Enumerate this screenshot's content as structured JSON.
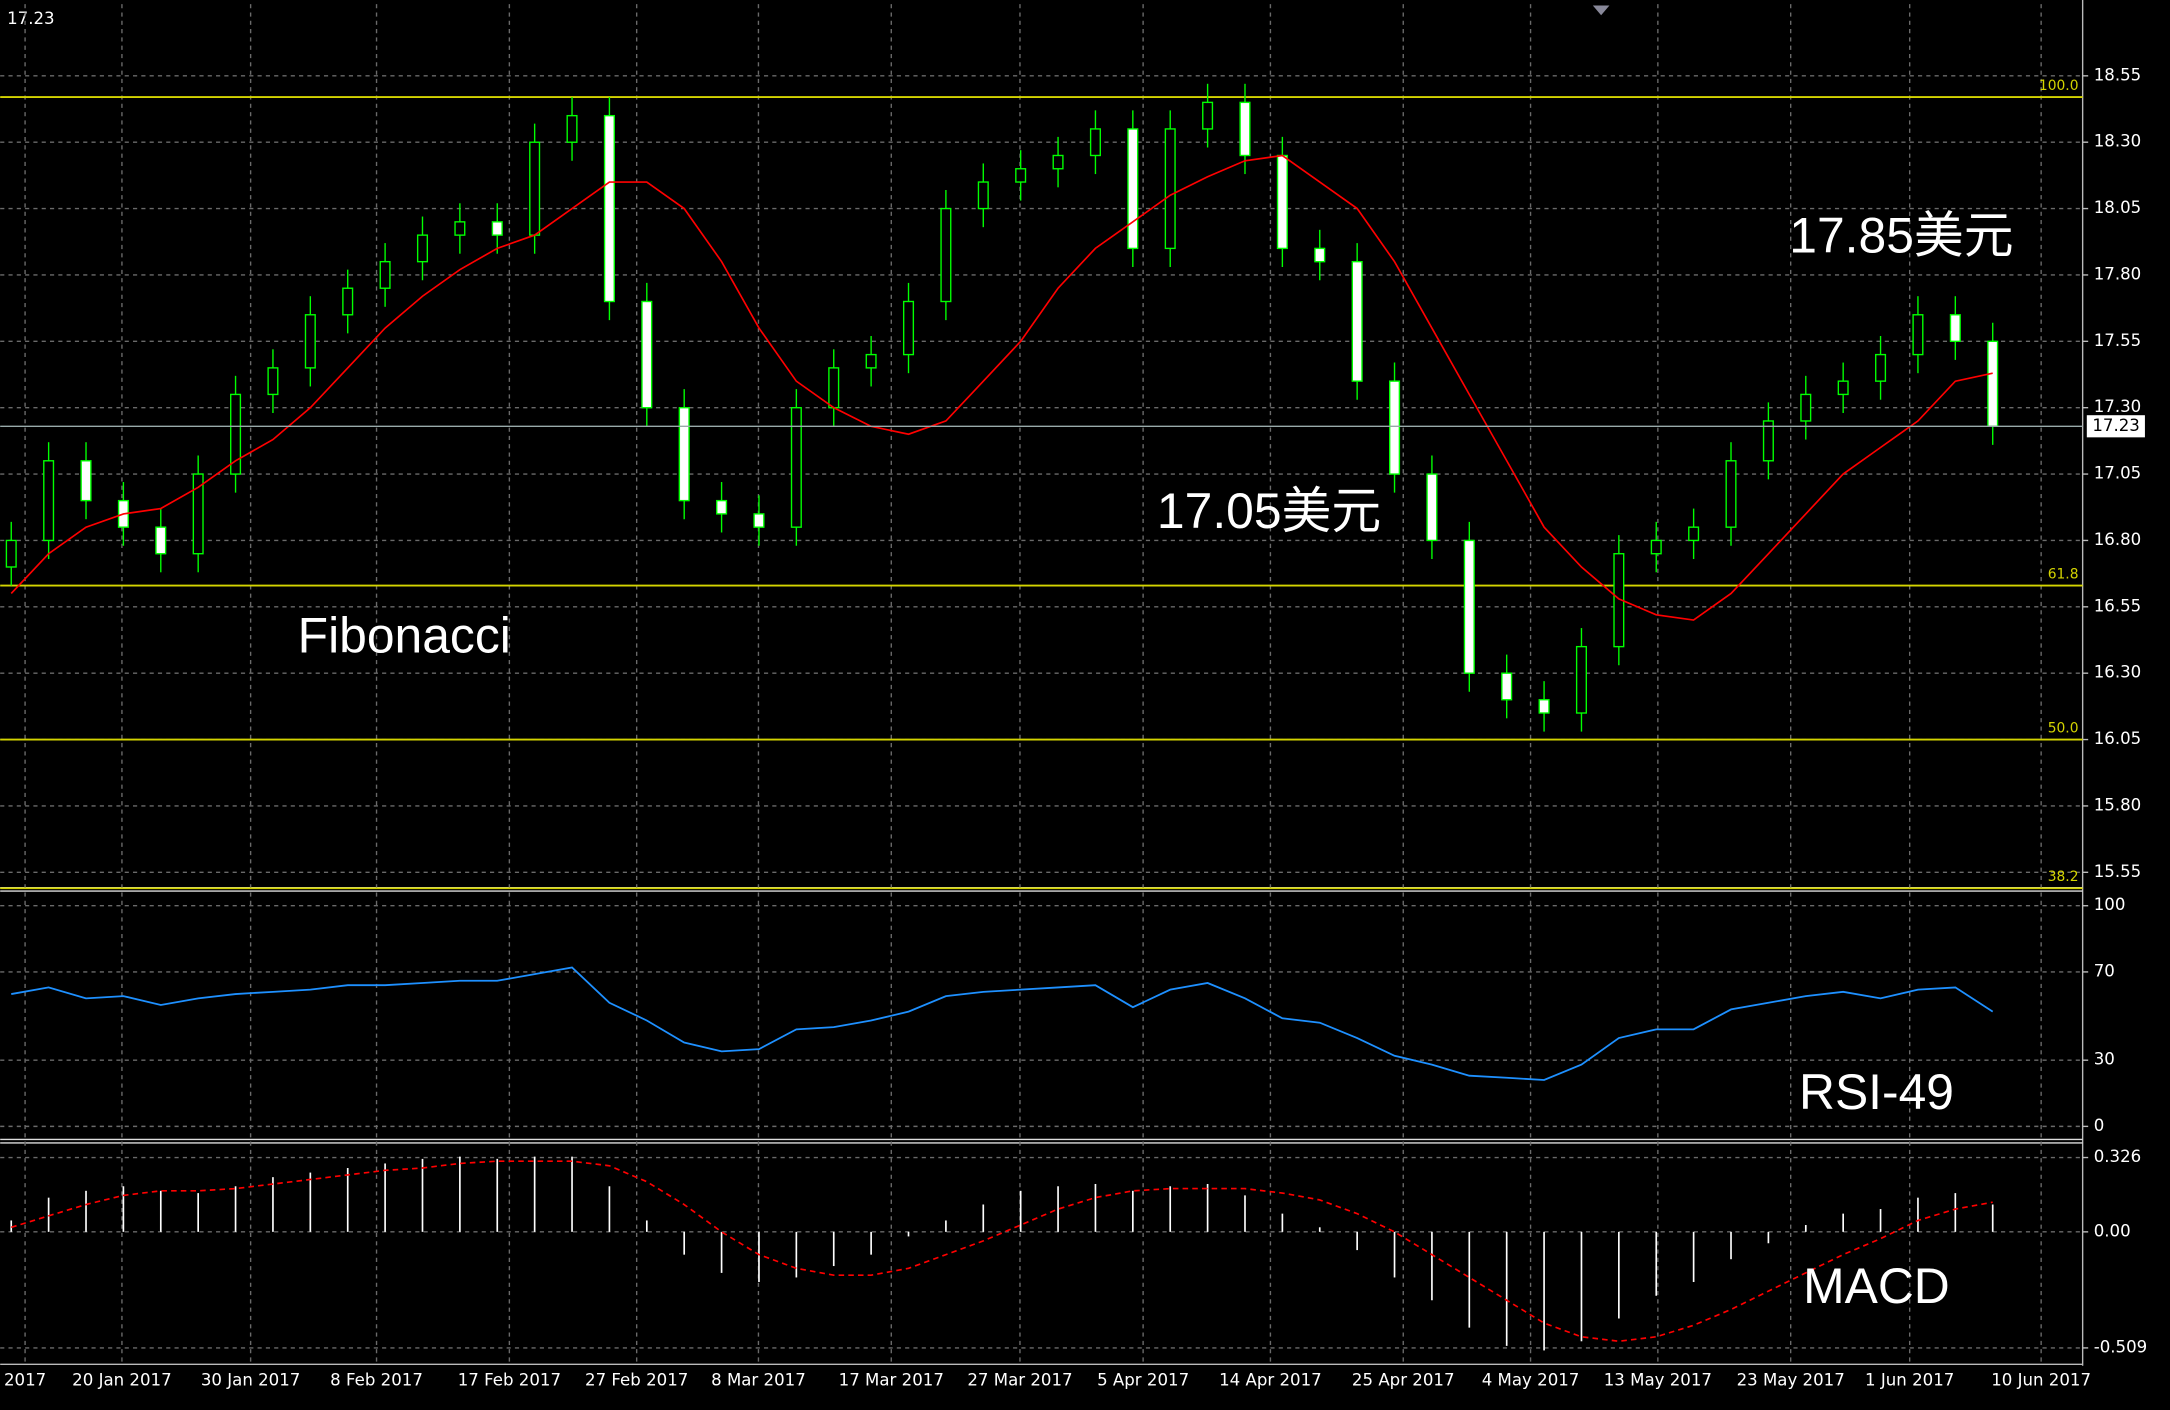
{
  "chart_data": [
    {
      "type": "candlestick",
      "last_price": 17.23,
      "ylim": [
        15.5,
        18.82
      ],
      "yticks": [
        18.55,
        {
          "value": 18.3,
          "label": "18.30"
        },
        18.05,
        {
          "value": 17.8,
          "label": "17.80"
        },
        17.55,
        {
          "value": 17.3,
          "label": "17.30"
        },
        17.05,
        {
          "value": 16.8,
          "label": "16.80"
        },
        16.55,
        {
          "value": 16.3,
          "label": "16.30"
        },
        16.05,
        {
          "value": 15.8,
          "label": "15.80"
        },
        15.55
      ],
      "grid": true,
      "color": "#00ff00",
      "open": [
        16.7,
        16.8,
        17.1,
        16.95,
        16.85,
        16.75,
        17.05,
        17.35,
        17.45,
        17.65,
        17.75,
        17.85,
        17.95,
        18.0,
        17.95,
        18.3,
        18.4,
        17.7,
        17.3,
        16.95,
        16.9,
        16.85,
        17.3,
        17.45,
        17.5,
        17.7,
        18.05,
        18.15,
        18.2,
        18.25,
        18.35,
        17.9,
        18.35,
        18.45,
        18.25,
        17.9,
        17.85,
        17.4,
        17.05,
        16.8,
        16.3,
        16.2,
        16.15,
        16.4,
        16.75,
        16.8,
        16.85,
        17.1,
        17.25,
        17.35,
        17.4,
        17.5,
        17.65,
        17.55
      ],
      "high": [
        16.87,
        17.17,
        17.17,
        17.02,
        16.92,
        17.12,
        17.42,
        17.52,
        17.72,
        17.82,
        17.92,
        18.02,
        18.07,
        18.07,
        18.37,
        18.47,
        18.47,
        17.77,
        17.37,
        17.02,
        16.97,
        17.37,
        17.52,
        17.57,
        17.77,
        18.12,
        18.22,
        18.27,
        18.32,
        18.42,
        18.42,
        18.42,
        18.52,
        18.52,
        18.32,
        17.97,
        17.92,
        17.47,
        17.12,
        16.87,
        16.37,
        16.27,
        16.47,
        16.82,
        16.87,
        16.92,
        17.17,
        17.32,
        17.42,
        17.47,
        17.57,
        17.72,
        17.72,
        17.62
      ],
      "low": [
        16.63,
        16.73,
        16.88,
        16.78,
        16.68,
        16.68,
        16.98,
        17.28,
        17.38,
        17.58,
        17.68,
        17.78,
        17.88,
        17.88,
        17.88,
        18.23,
        17.63,
        17.23,
        16.88,
        16.83,
        16.78,
        16.78,
        17.23,
        17.38,
        17.43,
        17.63,
        17.98,
        18.08,
        18.13,
        18.18,
        17.83,
        17.83,
        18.28,
        18.18,
        17.83,
        17.78,
        17.33,
        16.98,
        16.73,
        16.23,
        16.13,
        16.08,
        16.08,
        16.33,
        16.68,
        16.73,
        16.78,
        17.03,
        17.18,
        17.28,
        17.33,
        17.43,
        17.48,
        17.16
      ],
      "close": [
        16.8,
        17.1,
        16.95,
        16.85,
        16.75,
        17.05,
        17.35,
        17.45,
        17.65,
        17.75,
        17.85,
        17.95,
        18.0,
        17.95,
        18.3,
        18.4,
        17.7,
        17.3,
        16.95,
        16.9,
        16.85,
        17.3,
        17.45,
        17.5,
        17.7,
        18.05,
        18.15,
        18.2,
        18.25,
        18.35,
        17.9,
        18.35,
        18.45,
        18.25,
        17.9,
        17.85,
        17.4,
        17.05,
        16.8,
        16.3,
        16.2,
        16.15,
        16.4,
        16.75,
        16.8,
        16.85,
        17.1,
        17.25,
        17.35,
        17.4,
        17.5,
        17.65,
        17.55,
        17.23
      ],
      "series": [
        {
          "color": "#ff0000",
          "values": [
            16.6,
            16.75,
            16.85,
            16.9,
            16.92,
            17.0,
            17.1,
            17.18,
            17.3,
            17.45,
            17.6,
            17.72,
            17.82,
            17.9,
            17.95,
            18.05,
            18.15,
            18.15,
            18.05,
            17.85,
            17.6,
            17.4,
            17.3,
            17.23,
            17.2,
            17.25,
            17.4,
            17.55,
            17.75,
            17.9,
            18.0,
            18.1,
            18.17,
            18.23,
            18.25,
            18.15,
            18.05,
            17.85,
            17.6,
            17.35,
            17.1,
            16.85,
            16.7,
            16.58,
            16.52,
            16.5,
            16.6,
            16.75,
            16.9,
            17.05,
            17.15,
            17.25,
            17.4,
            17.43
          ]
        }
      ],
      "level_color": "#d4d400",
      "levels": [
        {
          "value": 18.47,
          "label": "100.0"
        },
        {
          "value": 16.63,
          "label": "61.8"
        },
        {
          "value": 16.05,
          "label": "50.0"
        },
        {
          "value": 15.49,
          "label": "38.2"
        }
      ],
      "annotations": [
        "17.85美元",
        "17.05美元",
        "Fibonacci"
      ]
    },
    {
      "type": "line",
      "ylim": [
        -5,
        106
      ],
      "yticks": [
        100,
        70,
        30,
        0
      ],
      "grid": true,
      "series": [
        {
          "color": "#1e90ff",
          "values": [
            60,
            63,
            58,
            59,
            55,
            58,
            60,
            61,
            62,
            64,
            64,
            65,
            66,
            66,
            69,
            72,
            56,
            48,
            38,
            34,
            35,
            44,
            45,
            48,
            52,
            59,
            61,
            62,
            63,
            64,
            54,
            62,
            65,
            58,
            49,
            47,
            40,
            32,
            28,
            23,
            22,
            21,
            28,
            40,
            44,
            44,
            53,
            56,
            59,
            61,
            58,
            62,
            63,
            52
          ]
        }
      ],
      "annotations": [
        "RSI-49"
      ]
    },
    {
      "type": "macd",
      "ylim": [
        -0.575,
        0.39
      ],
      "yticks": [
        0.326,
        {
          "value": 0,
          "label": "0.00"
        },
        -0.509
      ],
      "grid": true,
      "histogram": {
        "color": "#ffffff",
        "values": [
          0.05,
          0.15,
          0.18,
          0.2,
          0.18,
          0.17,
          0.2,
          0.24,
          0.26,
          0.28,
          0.3,
          0.32,
          0.33,
          0.32,
          0.33,
          0.33,
          0.2,
          0.05,
          -0.1,
          -0.18,
          -0.22,
          -0.2,
          -0.15,
          -0.1,
          -0.02,
          0.05,
          0.12,
          0.18,
          0.2,
          0.21,
          0.18,
          0.2,
          0.21,
          0.16,
          0.08,
          0.02,
          -0.08,
          -0.2,
          -0.3,
          -0.42,
          -0.5,
          -0.52,
          -0.48,
          -0.38,
          -0.28,
          -0.22,
          -0.12,
          -0.05,
          0.03,
          0.08,
          0.1,
          0.15,
          0.17,
          0.12
        ]
      },
      "signal": {
        "color": "#ff0000",
        "values": [
          0.02,
          0.07,
          0.12,
          0.16,
          0.18,
          0.18,
          0.19,
          0.21,
          0.23,
          0.25,
          0.27,
          0.28,
          0.3,
          0.31,
          0.31,
          0.31,
          0.29,
          0.22,
          0.12,
          0.0,
          -0.1,
          -0.16,
          -0.19,
          -0.19,
          -0.16,
          -0.1,
          -0.04,
          0.03,
          0.1,
          0.15,
          0.18,
          0.19,
          0.19,
          0.19,
          0.17,
          0.14,
          0.08,
          0.0,
          -0.1,
          -0.2,
          -0.3,
          -0.4,
          -0.46,
          -0.48,
          -0.46,
          -0.41,
          -0.34,
          -0.26,
          -0.18,
          -0.1,
          -0.03,
          0.05,
          0.1,
          0.13
        ]
      },
      "xtick_labels": [
        "2017",
        "20 Jan 2017",
        "30 Jan 2017",
        "8 Feb 2017",
        "17 Feb 2017",
        "27 Feb 2017",
        "8 Mar 2017",
        "17 Mar 2017",
        "27 Mar 2017",
        "5 Apr 2017",
        "14 Apr 2017",
        "25 Apr 2017",
        "4 May 2017",
        "13 May 2017",
        "23 May 2017",
        "1 Jun 2017",
        "10 Jun 2017"
      ],
      "annotations": [
        "MACD"
      ]
    }
  ]
}
